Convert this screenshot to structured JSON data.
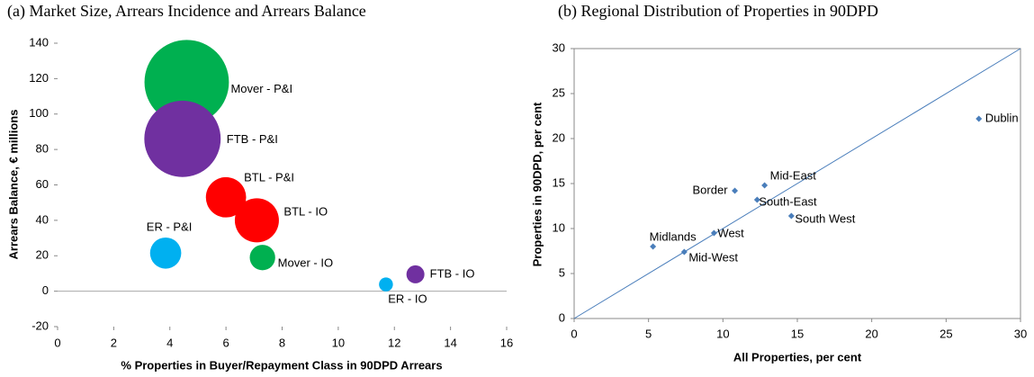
{
  "chart_data": [
    {
      "type": "bubble",
      "title": "(a) Market Size, Arrears Incidence and Arrears Balance",
      "x_label": "% Properties in Buyer/Repayment Class in 90DPD Arrears",
      "y_label": "Arrears Balance, € millions",
      "labels": [
        "Mover - P&I",
        "FTB - P&I",
        "BTL - P&I",
        "BTL - IO",
        "ER - P&I",
        "Mover - IO",
        "FTB - IO",
        "ER - IO"
      ],
      "x": [
        4.6,
        4.45,
        6.0,
        7.1,
        3.85,
        7.3,
        12.75,
        11.7
      ],
      "values": [
        118,
        86,
        53,
        40,
        21.5,
        19,
        9.5,
        3.8
      ],
      "sizes": [
        22,
        18,
        5,
        6,
        3,
        2,
        1,
        0.6
      ],
      "colors": [
        "#00b050",
        "#7030a0",
        "#ff0000",
        "#ff0000",
        "#00b0f0",
        "#00b050",
        "#7030a0",
        "#00b0f0"
      ],
      "xlim": [
        0,
        16
      ],
      "xticks": [
        0,
        2,
        4,
        6,
        8,
        10,
        12,
        14,
        16
      ],
      "ylim": [
        -20,
        140
      ],
      "yticks": [
        -20,
        0,
        20,
        40,
        60,
        80,
        100,
        120,
        140
      ]
    },
    {
      "type": "scatter",
      "title": "(b) Regional Distribution of Properties in 90DPD",
      "x_label": "All Properties, per cent",
      "y_label": "Properties in 90DPD, per cent",
      "labels": [
        "Dublin",
        "Mid-East",
        "Border",
        "South-East",
        "South West",
        "West",
        "Midlands",
        "Mid-West"
      ],
      "x": [
        27.2,
        12.8,
        10.8,
        12.3,
        14.6,
        9.4,
        5.3,
        7.4
      ],
      "values": [
        22.2,
        14.8,
        14.2,
        13.2,
        11.4,
        9.5,
        8.0,
        7.4
      ],
      "color": "#4a7ebb",
      "line": {
        "x": [
          0,
          30
        ],
        "values": [
          0,
          30
        ],
        "color": "#4a7ebb"
      },
      "xlim": [
        0,
        30
      ],
      "xticks": [
        0,
        5,
        10,
        15,
        20,
        25,
        30
      ],
      "ylim": [
        0,
        30
      ],
      "yticks": [
        0,
        5,
        10,
        15,
        20,
        25,
        30
      ]
    }
  ]
}
